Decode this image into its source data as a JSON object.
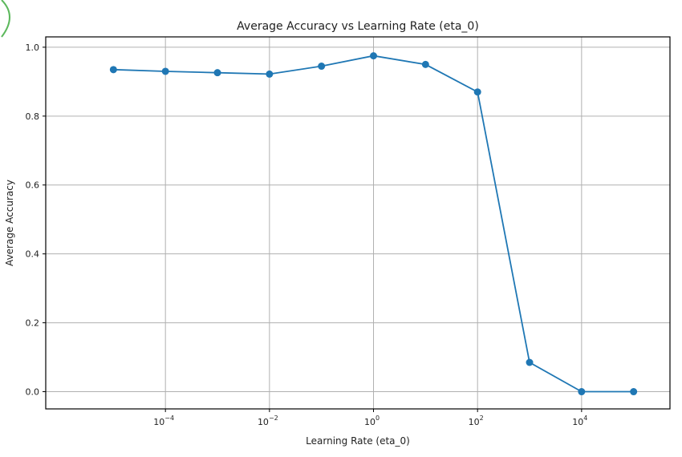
{
  "chart_data": {
    "type": "line",
    "title": "Average Accuracy vs Learning Rate (eta_0)",
    "xlabel": "Learning Rate (eta_0)",
    "ylabel": "Average Accuracy",
    "xscale": "log",
    "xlim": [
      5e-07,
      500000
    ],
    "ylim": [
      -0.05,
      1.03
    ],
    "x_ticks": [
      {
        "value": 0.0001,
        "base": "10",
        "exp": "−4"
      },
      {
        "value": 0.01,
        "base": "10",
        "exp": "−2"
      },
      {
        "value": 1,
        "base": "10",
        "exp": "0"
      },
      {
        "value": 100,
        "base": "10",
        "exp": "2"
      },
      {
        "value": 10000,
        "base": "10",
        "exp": "4"
      }
    ],
    "y_ticks": [
      {
        "value": 0.0,
        "label": "0.0"
      },
      {
        "value": 0.2,
        "label": "0.2"
      },
      {
        "value": 0.4,
        "label": "0.4"
      },
      {
        "value": 0.6,
        "label": "0.6"
      },
      {
        "value": 0.8,
        "label": "0.8"
      },
      {
        "value": 1.0,
        "label": "1.0"
      }
    ],
    "grid": true,
    "series": [
      {
        "color": "#1f77b4",
        "marker": "circle",
        "x": [
          1e-05,
          0.0001,
          0.001,
          0.01,
          0.1,
          1,
          10,
          100,
          1000,
          10000,
          100000
        ],
        "y": [
          0.935,
          0.93,
          0.926,
          0.922,
          0.945,
          0.975,
          0.95,
          0.87,
          0.085,
          0.0,
          0.0
        ]
      }
    ]
  }
}
